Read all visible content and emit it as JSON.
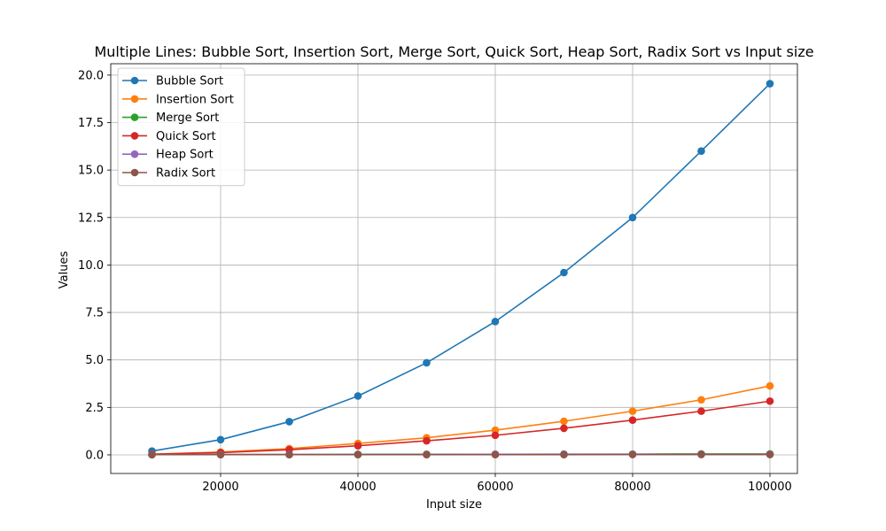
{
  "chart_data": {
    "type": "line",
    "title": "Multiple Lines: Bubble Sort, Insertion Sort, Merge Sort, Quick Sort, Heap Sort, Radix Sort vs Input size",
    "xlabel": "Input size",
    "ylabel": "Values",
    "xlim": [
      4000,
      104000
    ],
    "ylim": [
      -0.98,
      20.6
    ],
    "xticks": [
      20000,
      40000,
      60000,
      80000,
      100000
    ],
    "xtick_labels": [
      "20000",
      "40000",
      "60000",
      "80000",
      "100000"
    ],
    "yticks": [
      0,
      2.5,
      5,
      7.5,
      10,
      12.5,
      15,
      17.5,
      20
    ],
    "ytick_labels": [
      "0.0",
      "2.5",
      "5.0",
      "7.5",
      "10.0",
      "12.5",
      "15.0",
      "17.5",
      "20.0"
    ],
    "grid": true,
    "legend_position": "top-left",
    "x": [
      10000,
      20000,
      30000,
      40000,
      50000,
      60000,
      70000,
      80000,
      90000,
      100000
    ],
    "series": [
      {
        "name": "Bubble Sort",
        "color": "#1f77b4",
        "values": [
          0.2,
          0.8,
          1.75,
          3.1,
          4.85,
          7.02,
          9.6,
          12.5,
          16.0,
          19.55
        ]
      },
      {
        "name": "Insertion Sort",
        "color": "#ff7f0e",
        "values": [
          0.04,
          0.15,
          0.33,
          0.6,
          0.9,
          1.3,
          1.77,
          2.3,
          2.9,
          3.63
        ]
      },
      {
        "name": "Merge Sort",
        "color": "#2ca02c",
        "values": [
          0.01,
          0.02,
          0.02,
          0.03,
          0.03,
          0.03,
          0.04,
          0.04,
          0.05,
          0.05
        ]
      },
      {
        "name": "Quick Sort",
        "color": "#d62728",
        "values": [
          0.03,
          0.12,
          0.27,
          0.48,
          0.74,
          1.03,
          1.4,
          1.83,
          2.3,
          2.83
        ]
      },
      {
        "name": "Heap Sort",
        "color": "#9467bd",
        "values": [
          0.01,
          0.02,
          0.02,
          0.02,
          0.02,
          0.03,
          0.03,
          0.03,
          0.03,
          0.03
        ]
      },
      {
        "name": "Radix Sort",
        "color": "#8c564b",
        "values": [
          0.01,
          0.01,
          0.01,
          0.01,
          0.01,
          0.01,
          0.01,
          0.02,
          0.02,
          0.02
        ]
      }
    ]
  }
}
